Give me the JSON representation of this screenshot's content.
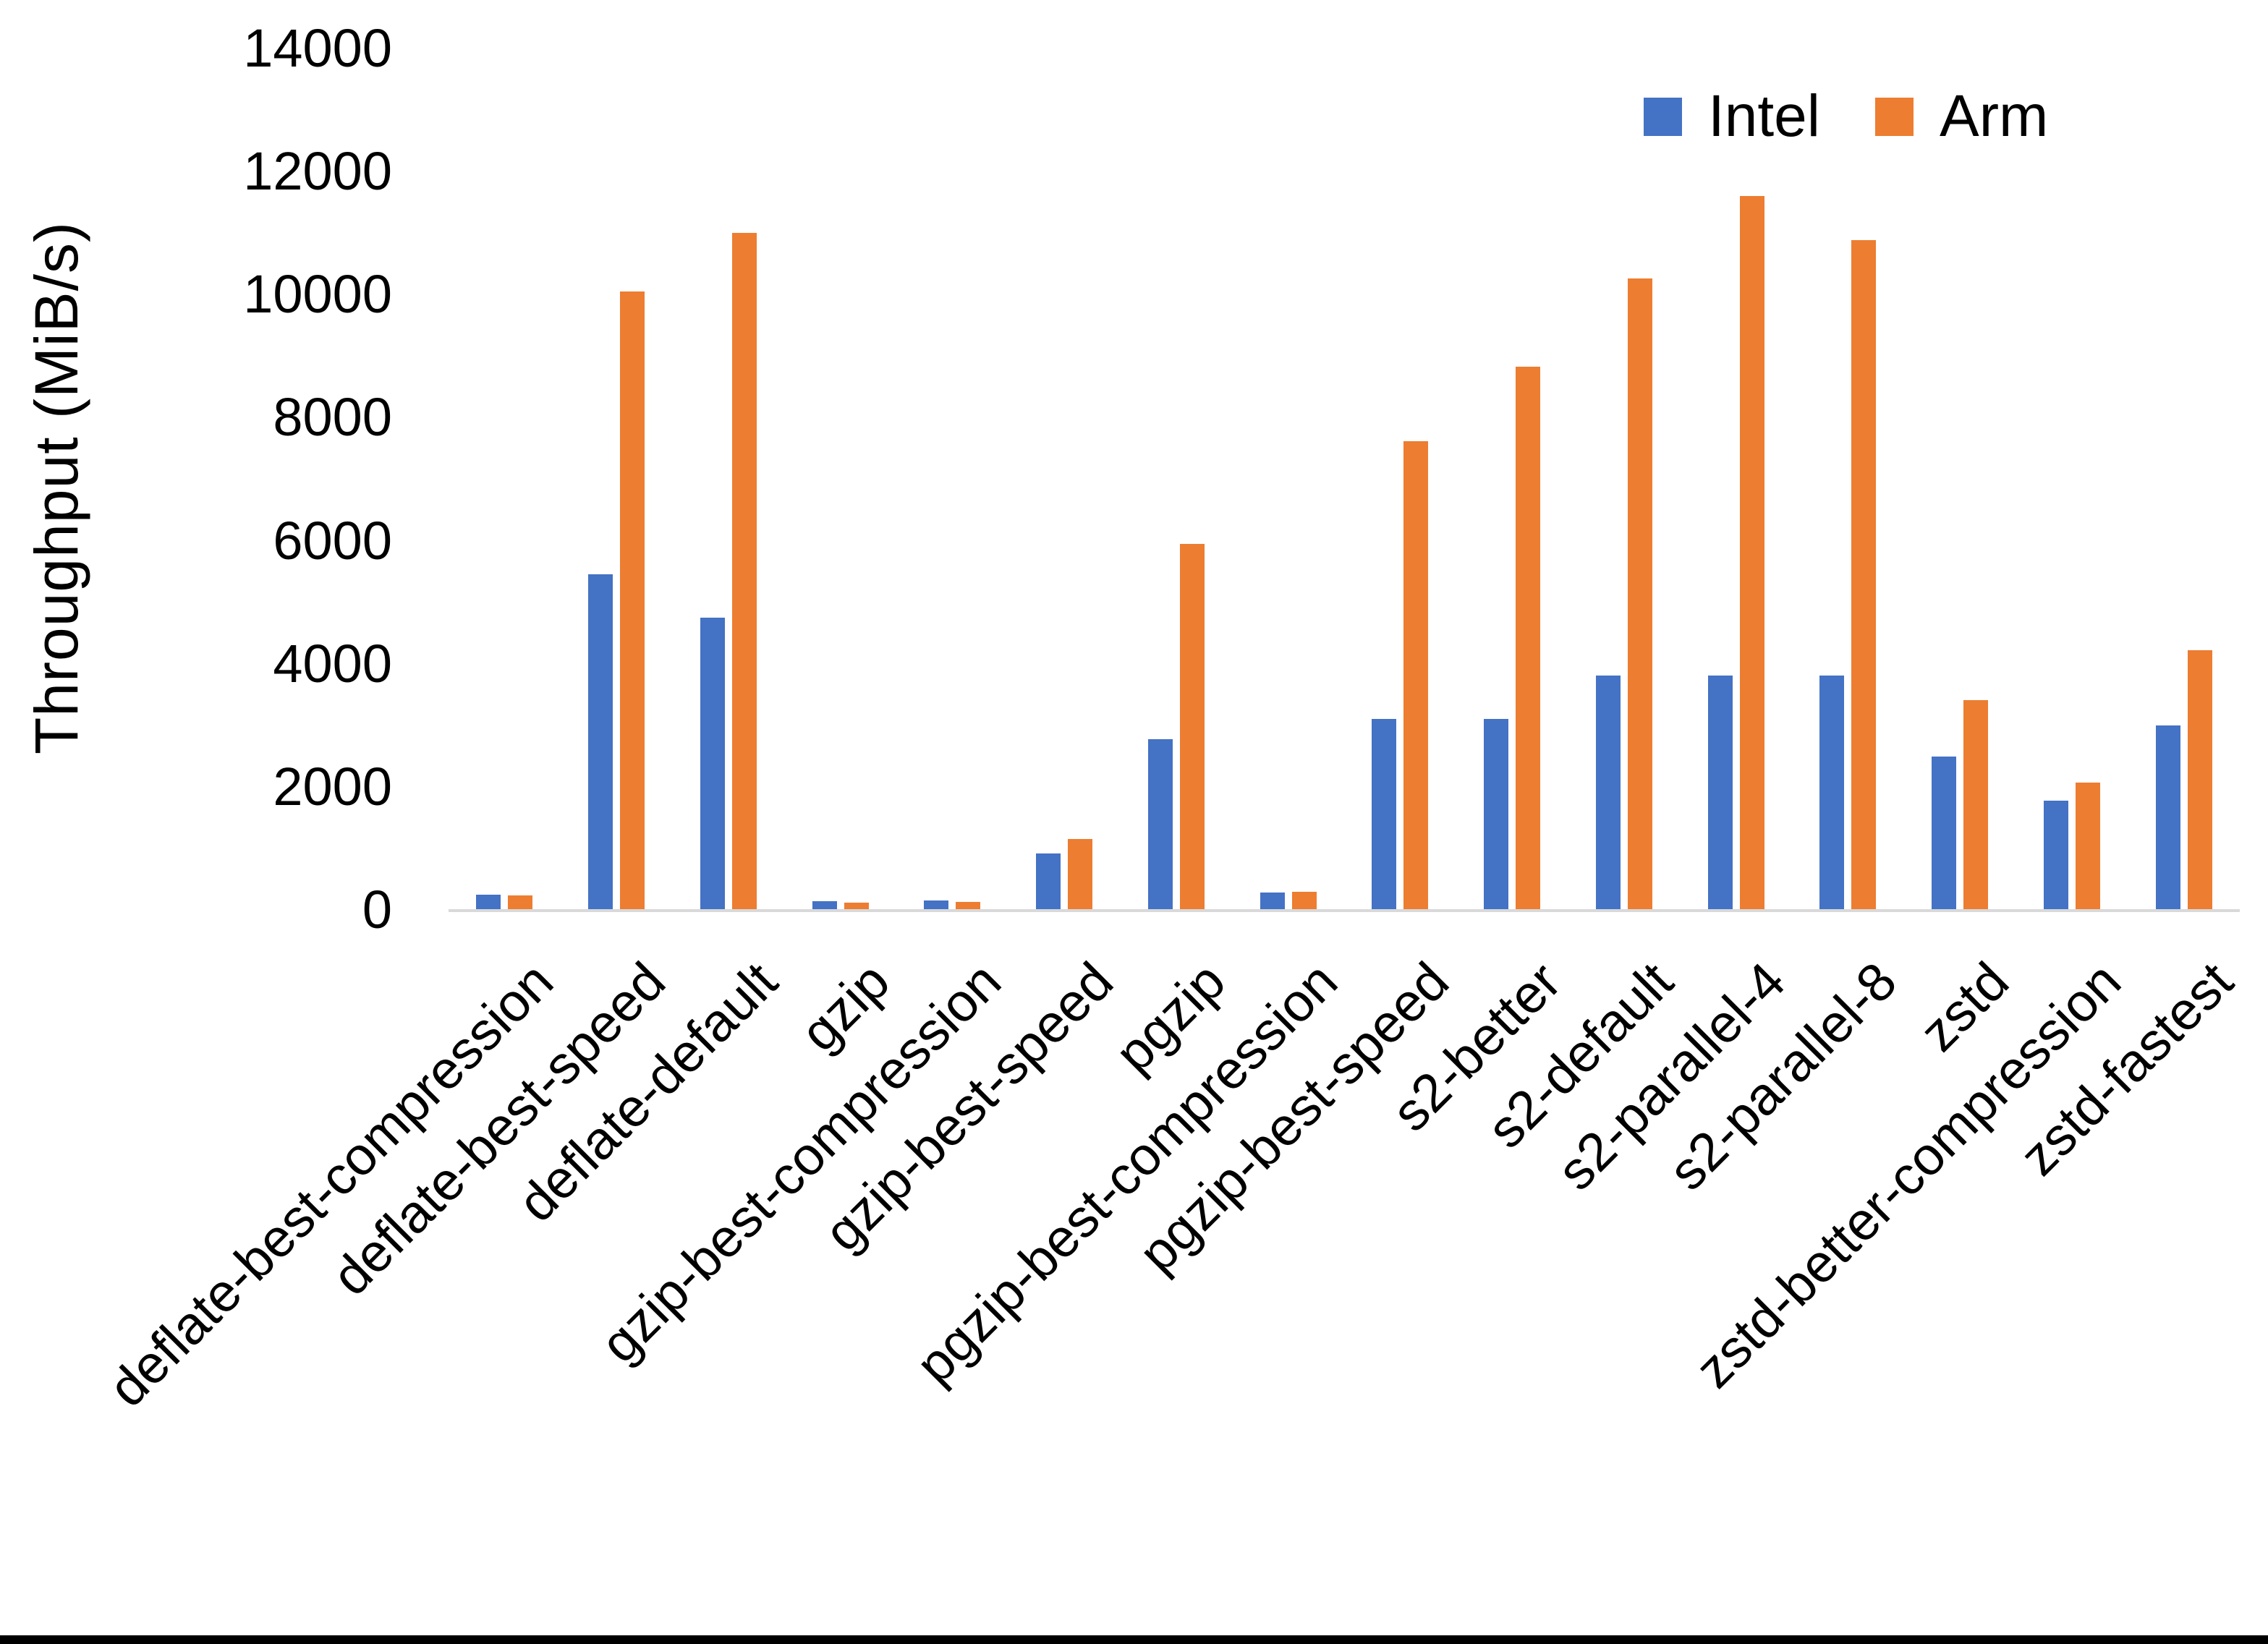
{
  "chart_data": {
    "type": "bar",
    "title": "",
    "xlabel": "",
    "ylabel": "Throughput (MiB/s)",
    "ylim": [
      0,
      14000
    ],
    "ytick_interval": 2000,
    "ytick_labels": [
      "0",
      "2000",
      "4000",
      "6000",
      "8000",
      "10000",
      "12000",
      "14000"
    ],
    "grid": false,
    "legend_position": "top-right",
    "axis_line_color": "#d9d9d9",
    "background_color": "#ffffff",
    "bottom_strip_color": "#000000",
    "categories": [
      "deflate-best-compression",
      "deflate-best-speed",
      "deflate-default",
      "gzip",
      "gzip-best-compression",
      "gzip-best-speed",
      "pgzip",
      "pgzip-best-compression",
      "pgzip-best-speed",
      "s2-better",
      "s2-default",
      "s2-parallel-4",
      "s2-parallel-8",
      "zstd",
      "zstd-better-compression",
      "zstd-fastest"
    ],
    "series": [
      {
        "name": "Intel",
        "color": "#4472C4",
        "values": [
          250,
          5450,
          4750,
          140,
          150,
          920,
          2770,
          280,
          3100,
          3100,
          3810,
          3810,
          3810,
          2490,
          1780,
          3000
        ]
      },
      {
        "name": "Arm",
        "color": "#ED7D31",
        "values": [
          240,
          10050,
          11000,
          120,
          130,
          1150,
          5950,
          290,
          7620,
          8830,
          10260,
          11600,
          10890,
          3410,
          2070,
          4220
        ]
      }
    ]
  }
}
